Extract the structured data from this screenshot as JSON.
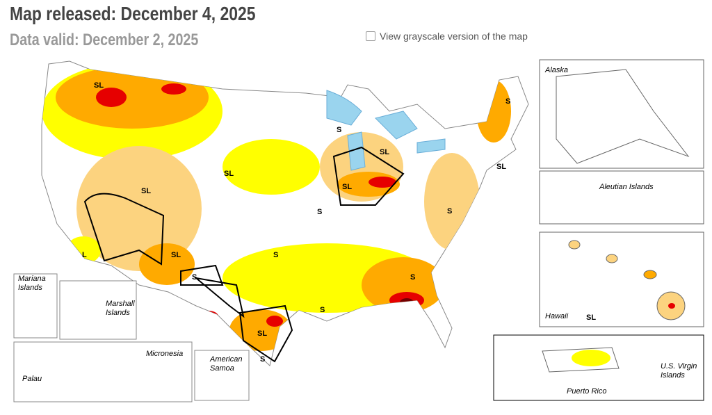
{
  "header": {
    "title": "Map released: December 4, 2025",
    "subtitle": "Data valid: December 2, 2025"
  },
  "controls": {
    "grayscale_label": "View grayscale version of the map"
  },
  "map": {
    "labels": [
      "SL",
      "S",
      "S",
      "SL",
      "SL",
      "SL",
      "SL",
      "SL",
      "S",
      "S",
      "L",
      "SL",
      "S",
      "S",
      "S",
      "S",
      "SL",
      "S"
    ]
  },
  "insets": {
    "alaska": "Alaska",
    "aleutian": "Aleutian Islands",
    "hawaii": "Hawaii",
    "hawaii_label": "SL",
    "mariana": "Mariana Islands",
    "marshall": "Marshall Islands",
    "micronesia": "Micronesia",
    "palau": "Palau",
    "samoa": "American Samoa",
    "puerto_rico": "Puerto Rico",
    "virgin_islands": "U.S. Virgin Islands"
  }
}
